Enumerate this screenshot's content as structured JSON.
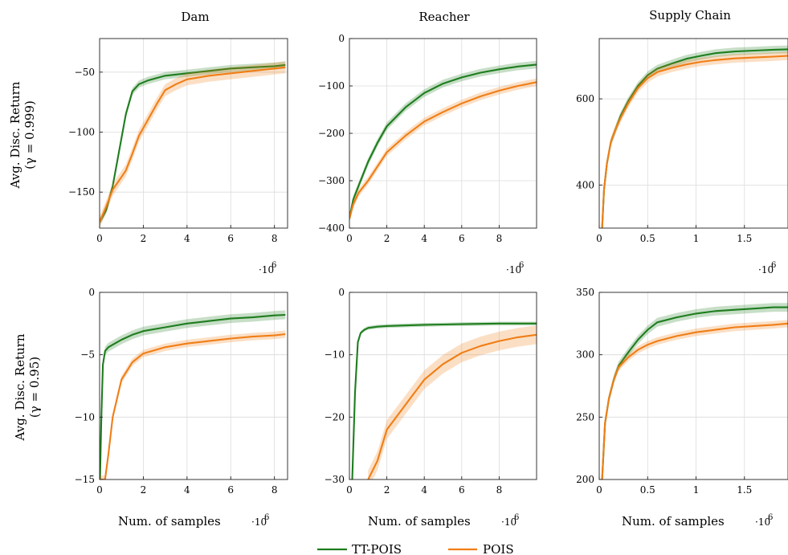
{
  "legend": [
    {
      "name": "TT-POIS",
      "color": "#1e7d1e"
    },
    {
      "name": "POIS",
      "color": "#f07e16"
    }
  ],
  "row_labels": [
    {
      "line1": "Avg. Disc. Return",
      "line2": "(γ = 0.999)"
    },
    {
      "line1": "Avg. Disc. Return",
      "line2": "(γ = 0.95)"
    }
  ],
  "x_label": "Num. of samples",
  "exponent_label": "·10",
  "exponent_power": "6",
  "chart_data": [
    {
      "type": "line",
      "row": 0,
      "col": 0,
      "title": "Dam",
      "xlim": [
        0,
        8.6
      ],
      "ylim": [
        -180,
        -22
      ],
      "xticks": [
        0,
        2,
        4,
        6,
        8
      ],
      "xtick_labels": [
        "0",
        "2",
        "4",
        "6",
        "8"
      ],
      "yticks": [
        -150,
        -100,
        -50
      ],
      "ytick_labels": [
        "−150",
        "−100",
        "−50"
      ],
      "x": [
        0,
        0.3,
        0.6,
        0.9,
        1.2,
        1.5,
        1.8,
        2.2,
        2.6,
        3,
        3.5,
        4,
        5,
        6,
        7,
        8,
        8.5
      ],
      "series": [
        {
          "name": "TT-POIS",
          "values": [
            -175,
            -165,
            -145,
            -115,
            -85,
            -66,
            -60,
            -57,
            -55,
            -53,
            -52,
            -51,
            -49,
            -47,
            -46,
            -45,
            -44
          ],
          "band": 3
        },
        {
          "name": "POIS",
          "values": [
            -175,
            -162,
            -148,
            -140,
            -132,
            -118,
            -103,
            -90,
            -77,
            -65,
            -60,
            -56,
            -53,
            -51,
            -49,
            -47,
            -46
          ],
          "band": 5
        }
      ]
    },
    {
      "type": "line",
      "row": 0,
      "col": 1,
      "title": "Reacher",
      "xlim": [
        0,
        10
      ],
      "ylim": [
        -400,
        0
      ],
      "xticks": [
        0,
        2,
        4,
        6,
        8
      ],
      "xtick_labels": [
        "0",
        "2",
        "4",
        "6",
        "8"
      ],
      "yticks": [
        -400,
        -300,
        -200,
        -100,
        0
      ],
      "ytick_labels": [
        "−400",
        "−300",
        "−200",
        "−100",
        "0"
      ],
      "x": [
        0,
        0.2,
        0.5,
        1,
        1.5,
        2,
        3,
        4,
        5,
        6,
        7,
        8,
        9,
        10
      ],
      "series": [
        {
          "name": "TT-POIS",
          "values": [
            -380,
            -340,
            -310,
            -260,
            -220,
            -185,
            -145,
            -115,
            -95,
            -82,
            -72,
            -65,
            -59,
            -55
          ],
          "band": 8
        },
        {
          "name": "POIS",
          "values": [
            -380,
            -350,
            -325,
            -300,
            -270,
            -240,
            -205,
            -175,
            -155,
            -137,
            -122,
            -110,
            -100,
            -92
          ],
          "band": 8
        }
      ]
    },
    {
      "type": "line",
      "row": 0,
      "col": 2,
      "title": "Supply Chain",
      "xlim": [
        0,
        1.95
      ],
      "ylim": [
        300,
        740
      ],
      "xticks": [
        0,
        0.5,
        1,
        1.5
      ],
      "xtick_labels": [
        "0",
        "0.5",
        "1",
        "1.5"
      ],
      "yticks": [
        400,
        600
      ],
      "ytick_labels": [
        "400",
        "600"
      ],
      "x": [
        0.03,
        0.05,
        0.08,
        0.12,
        0.17,
        0.22,
        0.3,
        0.4,
        0.5,
        0.6,
        0.75,
        0.9,
        1.05,
        1.2,
        1.4,
        1.6,
        1.8,
        1.95
      ],
      "series": [
        {
          "name": "TT-POIS",
          "values": [
            300,
            390,
            450,
            500,
            530,
            560,
            595,
            630,
            655,
            670,
            682,
            693,
            700,
            706,
            710,
            712,
            714,
            715
          ],
          "band": 9
        },
        {
          "name": "POIS",
          "values": [
            300,
            390,
            450,
            500,
            530,
            555,
            590,
            625,
            648,
            662,
            672,
            680,
            686,
            690,
            694,
            696,
            698,
            700
          ],
          "band": 10
        }
      ]
    },
    {
      "type": "line",
      "row": 1,
      "col": 0,
      "title": "",
      "xlim": [
        0,
        8.6
      ],
      "ylim": [
        -15,
        0
      ],
      "xticks": [
        0,
        2,
        4,
        6,
        8
      ],
      "xtick_labels": [
        "0",
        "2",
        "4",
        "6",
        "8"
      ],
      "yticks": [
        -15,
        -10,
        -5,
        0
      ],
      "ytick_labels": [
        "−15",
        "−10",
        "−5",
        "0"
      ],
      "x": [
        0.02,
        0.08,
        0.15,
        0.25,
        0.4,
        0.6,
        1,
        1.5,
        2,
        3,
        4,
        5,
        6,
        7,
        8,
        8.5
      ],
      "series": [
        {
          "name": "TT-POIS",
          "values": [
            -15,
            -10,
            -5.8,
            -4.7,
            -4.4,
            -4.2,
            -3.8,
            -3.4,
            -3.1,
            -2.8,
            -2.5,
            -2.3,
            -2.1,
            -2,
            -1.85,
            -1.8
          ],
          "band": 0.35
        },
        {
          "name": "POIS",
          "values": [
            -15,
            -15,
            -15,
            -15,
            -13,
            -10,
            -7,
            -5.6,
            -4.9,
            -4.4,
            -4.1,
            -3.9,
            -3.7,
            -3.55,
            -3.45,
            -3.35
          ],
          "band": 0.3
        }
      ]
    },
    {
      "type": "line",
      "row": 1,
      "col": 1,
      "title": "",
      "xlim": [
        0,
        10
      ],
      "ylim": [
        -30,
        0
      ],
      "xticks": [
        0,
        2,
        4,
        6,
        8
      ],
      "xtick_labels": [
        "0",
        "2",
        "4",
        "6",
        "8"
      ],
      "yticks": [
        -30,
        -20,
        -10,
        0
      ],
      "ytick_labels": [
        "−30",
        "−20",
        "−10",
        "0"
      ],
      "x": [
        0.15,
        0.3,
        0.45,
        0.6,
        0.8,
        1,
        1.5,
        2,
        3,
        4,
        5,
        6,
        7,
        8,
        9,
        10
      ],
      "series": [
        {
          "name": "TT-POIS",
          "values": [
            -30,
            -16,
            -8,
            -6.5,
            -6,
            -5.7,
            -5.5,
            -5.4,
            -5.3,
            -5.2,
            -5.15,
            -5.1,
            -5.05,
            -5,
            -5,
            -5
          ],
          "band": 0.3
        },
        {
          "name": "POIS",
          "values": [
            null,
            null,
            null,
            null,
            null,
            -30,
            -27,
            -22,
            -18,
            -14,
            -11.5,
            -9.7,
            -8.6,
            -7.8,
            -7.2,
            -6.8
          ],
          "band": 1.5
        }
      ]
    },
    {
      "type": "line",
      "row": 1,
      "col": 2,
      "title": "",
      "xlim": [
        0,
        1.95
      ],
      "ylim": [
        200,
        350
      ],
      "xticks": [
        0,
        0.5,
        1,
        1.5
      ],
      "xtick_labels": [
        "0",
        "0.5",
        "1",
        "1.5"
      ],
      "yticks": [
        200,
        250,
        300,
        350
      ],
      "ytick_labels": [
        "200",
        "250",
        "300",
        "350"
      ],
      "x": [
        0.03,
        0.06,
        0.1,
        0.15,
        0.2,
        0.3,
        0.4,
        0.5,
        0.6,
        0.8,
        1,
        1.2,
        1.4,
        1.6,
        1.8,
        1.95
      ],
      "series": [
        {
          "name": "TT-POIS",
          "values": [
            200,
            245,
            265,
            280,
            291,
            302,
            312,
            320,
            326,
            330,
            333,
            335,
            336,
            337,
            338,
            338
          ],
          "band": 3.5
        },
        {
          "name": "POIS",
          "values": [
            200,
            245,
            265,
            280,
            290,
            298,
            304,
            308,
            311,
            315,
            318,
            320,
            322,
            323,
            324,
            325
          ],
          "band": 3
        }
      ]
    }
  ]
}
